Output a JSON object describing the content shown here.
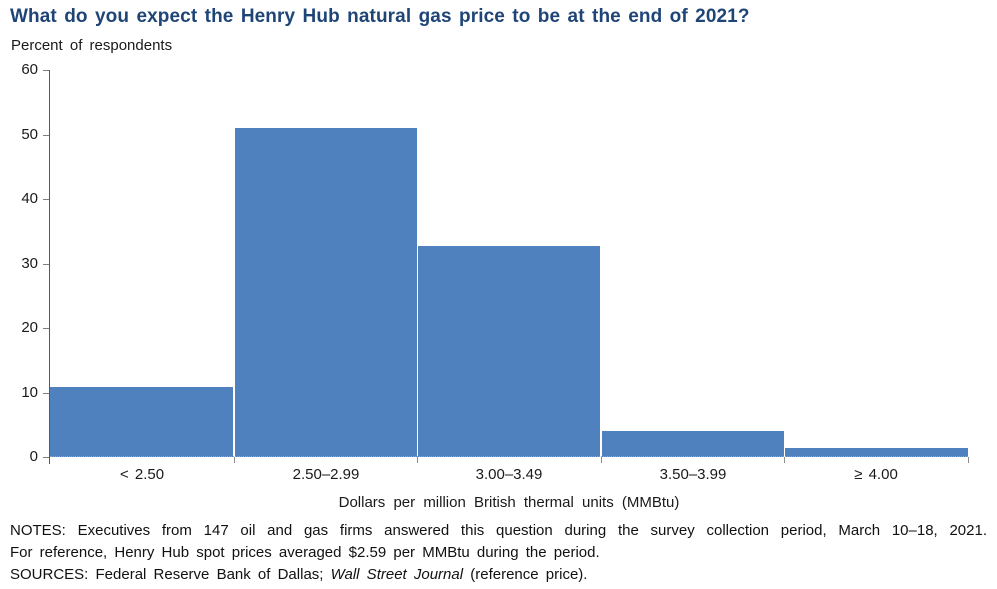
{
  "title": "What do you expect the Henry Hub natural gas price to be at the end of 2021?",
  "subtitle": "Percent of respondents",
  "chart_data": {
    "type": "bar",
    "categories": [
      "< 2.50",
      "2.50–2.99",
      "3.00–3.49",
      "3.50–3.99",
      "≥ 4.00"
    ],
    "values": [
      10.9,
      51.0,
      32.7,
      4.1,
      1.4
    ],
    "title": "What do you expect the Henry Hub natural gas price to be at the end of 2021?",
    "xlabel": "Dollars per million British thermal units (MMBtu)",
    "ylabel": "Percent of respondents",
    "ylim": [
      0,
      60
    ],
    "yticks": [
      0,
      10,
      20,
      30,
      40,
      50,
      60
    ],
    "grid": false,
    "legend": "none",
    "bar_color": "#4e81bd"
  },
  "notes": {
    "line1": "NOTES: Executives from 147 oil and gas firms answered this question during the survey collection period, March 10–18, 2021.",
    "line2": "For reference, Henry Hub spot prices averaged $2.59 per MMBtu during the period.",
    "sources_prefix": "SOURCES: Federal Reserve Bank of Dallas; ",
    "sources_italic": "Wall Street Journal",
    "sources_suffix": " (reference price)."
  },
  "colors": {
    "title_text": "#1f4577",
    "bar": "#4e81bd",
    "axis_line": "#595959",
    "baseline_dots": "#a3a3a3"
  }
}
